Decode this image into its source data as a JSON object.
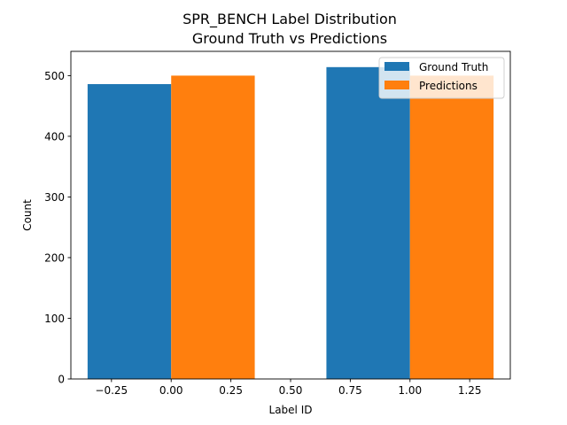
{
  "chart_data": {
    "type": "bar",
    "title": "SPR_BENCH Label Distribution",
    "subtitle": "Ground Truth vs Predictions",
    "xlabel": "Label ID",
    "ylabel": "Count",
    "xlim": [
      -0.42,
      1.42
    ],
    "ylim": [
      0,
      540
    ],
    "bar_width": 0.35,
    "x_ticks": [
      -0.25,
      0.0,
      0.25,
      0.5,
      0.75,
      1.0,
      1.25
    ],
    "x_tick_labels": [
      "−0.25",
      "0.00",
      "0.25",
      "0.50",
      "0.75",
      "1.00",
      "1.25"
    ],
    "y_ticks": [
      0,
      100,
      200,
      300,
      400,
      500
    ],
    "y_tick_labels": [
      "0",
      "100",
      "200",
      "300",
      "400",
      "500"
    ],
    "grid": false,
    "legend_position": "top-right",
    "categories": [
      0,
      1
    ],
    "series": [
      {
        "name": "Ground Truth",
        "color": "#1f77b4",
        "offset": -0.175,
        "values": [
          486,
          514
        ]
      },
      {
        "name": "Predictions",
        "color": "#ff7f0e",
        "offset": 0.175,
        "values": [
          500,
          500
        ]
      }
    ]
  }
}
